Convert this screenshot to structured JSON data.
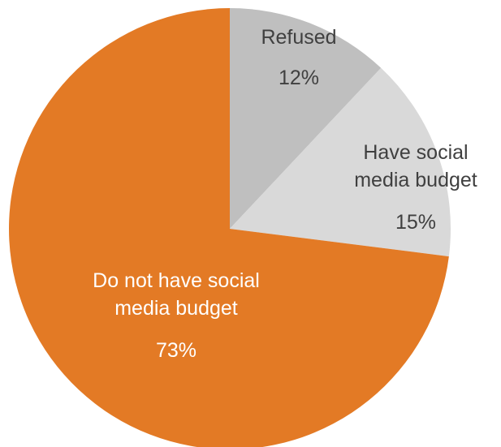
{
  "chart_data": {
    "type": "pie",
    "title": "",
    "slices": [
      {
        "label_lines": [
          "Refused"
        ],
        "value": 12,
        "value_label": "12%",
        "color": "#bfbfbf",
        "label_color": "#404040"
      },
      {
        "label_lines": [
          "Have social",
          "media budget"
        ],
        "value": 15,
        "value_label": "15%",
        "color": "#d9d9d9",
        "label_color": "#404040"
      },
      {
        "label_lines": [
          "Do not have social",
          "media budget"
        ],
        "value": 73,
        "value_label": "73%",
        "color": "#e37a25",
        "label_color": "#ffffff"
      }
    ],
    "start_angle_deg": 0,
    "direction": "clockwise",
    "legend": "none"
  }
}
